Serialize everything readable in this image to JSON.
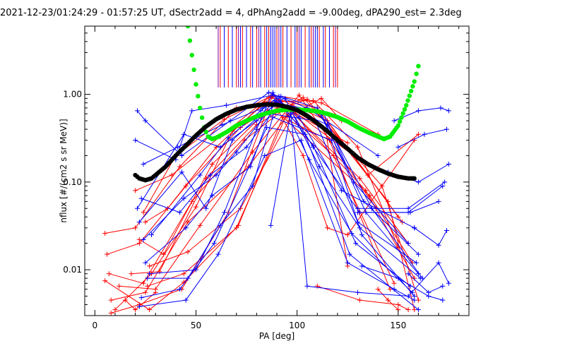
{
  "chart_data": {
    "type": "line",
    "title": "2021-12-23/01:24:29 - 01:57:25 UT, dSectr2add = 4, dPhAng2add = -9.00deg, dPA290_est=   2.3deg",
    "xlabel": "PA [deg]",
    "ylabel": "nflux [#/(cm2 s sr MeV)]",
    "xlim": [
      -5,
      185
    ],
    "ylim": [
      0.003,
      6.0
    ],
    "yscale": "log",
    "x_ticks": [
      0,
      50,
      100,
      150
    ],
    "x_tick_labels": [
      "0",
      "50",
      "100",
      "150"
    ],
    "y_ticks": [
      0.01,
      0.1,
      1.0
    ],
    "y_tick_labels": [
      "0.01",
      "0.10",
      "1.00"
    ],
    "grid": false,
    "colors": {
      "red": "#ff0000",
      "blue": "#0000ff",
      "green": "#00ee00",
      "black": "#000000",
      "purple": "#7a00a8"
    },
    "green_model": {
      "name": "",
      "x": [
        46,
        48,
        50,
        52,
        54,
        56,
        58,
        60,
        65,
        70,
        75,
        80,
        85,
        90,
        95,
        100,
        105,
        110,
        115,
        120,
        125,
        130,
        135,
        140,
        143,
        146,
        150,
        154,
        158,
        160
      ],
      "y": [
        6.0,
        2.8,
        1.3,
        0.7,
        0.42,
        0.33,
        0.31,
        0.32,
        0.37,
        0.44,
        0.5,
        0.56,
        0.61,
        0.65,
        0.67,
        0.67,
        0.66,
        0.64,
        0.6,
        0.55,
        0.49,
        0.42,
        0.37,
        0.33,
        0.31,
        0.33,
        0.44,
        0.75,
        1.4,
        2.1
      ]
    },
    "black_fit": {
      "name": "",
      "x": [
        20,
        22,
        25,
        28,
        30,
        35,
        40,
        45,
        50,
        55,
        60,
        65,
        70,
        75,
        80,
        85,
        90,
        95,
        100,
        105,
        110,
        115,
        120,
        125,
        130,
        135,
        140,
        145,
        150,
        155,
        158
      ],
      "y": [
        0.12,
        0.11,
        0.105,
        0.11,
        0.12,
        0.15,
        0.2,
        0.26,
        0.34,
        0.43,
        0.52,
        0.6,
        0.67,
        0.72,
        0.75,
        0.77,
        0.76,
        0.72,
        0.66,
        0.57,
        0.47,
        0.38,
        0.3,
        0.24,
        0.19,
        0.16,
        0.14,
        0.125,
        0.115,
        0.11,
        0.11
      ]
    },
    "vertical_markers": {
      "y_low": 1.2,
      "y_high": 6.0,
      "red": [
        62,
        66,
        70,
        73,
        77,
        80,
        84,
        86,
        90,
        93,
        97,
        100,
        104,
        107,
        111,
        114,
        118,
        120
      ],
      "blue": [
        64,
        68,
        72,
        75,
        78,
        82,
        85,
        87,
        88,
        89,
        92,
        95,
        99,
        102,
        106,
        109,
        110,
        113,
        116
      ],
      "purple": [
        61,
        71,
        81,
        91,
        101,
        108,
        119
      ]
    },
    "series": [
      {
        "color": "red",
        "x": [
          5,
          20,
          42,
          70,
          90,
          125
        ],
        "y": [
          0.026,
          0.03,
          0.15,
          0.7,
          0.8,
          0.28
        ]
      },
      {
        "color": "red",
        "x": [
          6,
          22,
          45,
          72,
          92,
          128,
          150
        ],
        "y": [
          0.015,
          0.02,
          0.09,
          0.42,
          0.82,
          0.2,
          0.04
        ]
      },
      {
        "color": "red",
        "x": [
          7,
          24,
          48,
          74,
          95,
          131,
          155
        ],
        "y": [
          0.009,
          0.007,
          0.06,
          0.3,
          0.72,
          0.11,
          0.02
        ]
      },
      {
        "color": "red",
        "x": [
          8,
          25,
          46,
          76,
          97,
          134,
          158
        ],
        "y": [
          0.0045,
          0.0055,
          0.035,
          0.15,
          0.65,
          0.08,
          0.008
        ]
      },
      {
        "color": "red",
        "x": [
          10,
          28,
          50,
          68,
          88,
          115,
          152
        ],
        "y": [
          0.0035,
          0.009,
          0.052,
          0.38,
          0.95,
          0.5,
          0.035
        ]
      },
      {
        "color": "red",
        "x": [
          5,
          27,
          44,
          71,
          93,
          136,
          157
        ],
        "y": [
          0.0075,
          0.0035,
          0.0072,
          0.032,
          0.55,
          0.07,
          0.012
        ]
      },
      {
        "color": "red",
        "x": [
          12,
          30,
          52,
          78,
          101,
          139
        ],
        "y": [
          0.0065,
          0.006,
          0.032,
          0.22,
          0.98,
          0.05
        ]
      },
      {
        "color": "red",
        "x": [
          18,
          32,
          55,
          80,
          103,
          142,
          160
        ],
        "y": [
          0.009,
          0.0095,
          0.11,
          0.45,
          0.92,
          0.09,
          0.0045
        ]
      },
      {
        "color": "red",
        "x": [
          22,
          34,
          58,
          82,
          105,
          145,
          158
        ],
        "y": [
          0.022,
          0.015,
          0.16,
          0.55,
          0.88,
          0.06,
          0.0035
        ]
      },
      {
        "color": "red",
        "x": [
          25,
          36,
          60,
          84,
          108,
          130,
          150
        ],
        "y": [
          0.035,
          0.05,
          0.25,
          0.82,
          0.85,
          0.25,
          0.018
        ]
      },
      {
        "color": "red",
        "x": [
          8,
          22,
          43,
          66,
          88,
          112,
          140
        ],
        "y": [
          0.0032,
          0.004,
          0.006,
          0.045,
          0.98,
          0.8,
          0.35
        ]
      },
      {
        "color": "red",
        "x": [
          20,
          38,
          62,
          86,
          110,
          135,
          160
        ],
        "y": [
          0.08,
          0.12,
          0.33,
          0.92,
          0.7,
          0.12,
          0.35
        ]
      },
      {
        "color": "red",
        "x": [
          24,
          40,
          64,
          87,
          114,
          125
        ],
        "y": [
          0.045,
          0.2,
          0.52,
          0.95,
          0.4,
          0.011
        ]
      },
      {
        "color": "red",
        "x": [
          26,
          44,
          70,
          95,
          118,
          148
        ],
        "y": [
          0.0065,
          0.009,
          0.03,
          0.6,
          0.2,
          0.007
        ]
      },
      {
        "color": "red",
        "x": [
          27,
          46,
          72,
          96,
          116,
          146
        ],
        "y": [
          0.011,
          0.016,
          0.05,
          0.5,
          0.3,
          0.006
        ]
      },
      {
        "color": "red",
        "x": [
          110,
          131,
          150,
          155
        ],
        "y": [
          0.0065,
          0.0045,
          0.004,
          0.0035
        ]
      },
      {
        "color": "red",
        "x": [
          95,
          112,
          122,
          138
        ],
        "y": [
          0.55,
          0.9,
          0.5,
          0.35
        ]
      },
      {
        "color": "red",
        "x": [
          90,
          103,
          115,
          125,
          158
        ],
        "y": [
          0.7,
          0.2,
          0.03,
          0.025,
          0.3
        ]
      },
      {
        "color": "red",
        "x": [
          15,
          20,
          30
        ],
        "y": [
          0.0045,
          0.0035,
          0.0055
        ]
      },
      {
        "color": "red",
        "x": [
          140,
          145,
          150
        ],
        "y": [
          0.006,
          0.0045,
          0.0035
        ]
      },
      {
        "color": "blue",
        "x": [
          21,
          25,
          43,
          67,
          86,
          105,
          140
        ],
        "y": [
          0.65,
          0.5,
          0.2,
          0.5,
          1.05,
          0.7,
          0.2
        ]
      },
      {
        "color": "blue",
        "x": [
          20,
          40,
          48,
          65,
          88,
          101,
          122,
          158
        ],
        "y": [
          0.3,
          0.18,
          0.65,
          0.75,
          0.98,
          0.55,
          0.08,
          0.03
        ]
      },
      {
        "color": "blue",
        "x": [
          21,
          44,
          62,
          80,
          90,
          113,
          128,
          155
        ],
        "y": [
          0.05,
          0.35,
          0.25,
          0.5,
          0.8,
          0.62,
          0.1,
          0.02
        ]
      },
      {
        "color": "blue",
        "x": [
          22,
          43,
          55,
          68,
          92,
          110,
          133,
          160
        ],
        "y": [
          0.035,
          0.13,
          0.05,
          0.3,
          0.95,
          0.7,
          0.06,
          0.015
        ]
      },
      {
        "color": "blue",
        "x": [
          23,
          42,
          57,
          75,
          87,
          109,
          130,
          159
        ],
        "y": [
          0.065,
          0.045,
          0.12,
          0.25,
          0.6,
          0.5,
          0.035,
          0.012
        ]
      },
      {
        "color": "blue",
        "x": [
          24,
          44,
          60,
          70,
          88,
          112,
          134,
          160
        ],
        "y": [
          0.022,
          0.065,
          0.12,
          0.22,
          0.75,
          0.6,
          0.045,
          0.009
        ]
      },
      {
        "color": "blue",
        "x": [
          25,
          45,
          58,
          77,
          89,
          115,
          137,
          162
        ],
        "y": [
          0.012,
          0.03,
          0.07,
          0.15,
          0.85,
          0.45,
          0.05,
          0.008
        ]
      },
      {
        "color": "blue",
        "x": [
          26,
          46,
          62,
          78,
          88,
          117,
          132,
          158
        ],
        "y": [
          0.008,
          0.008,
          0.032,
          0.09,
          0.55,
          0.3,
          0.025,
          0.005
        ]
      },
      {
        "color": "blue",
        "x": [
          23,
          42,
          59,
          85,
          104,
          126,
          160
        ],
        "y": [
          0.0048,
          0.006,
          0.02,
          0.42,
          0.35,
          0.015,
          0.0035
        ]
      },
      {
        "color": "blue",
        "x": [
          22,
          45,
          61,
          84,
          102,
          125,
          148,
          158
        ],
        "y": [
          0.0038,
          0.0045,
          0.015,
          0.2,
          0.3,
          0.012,
          0.006,
          0.0045
        ]
      },
      {
        "color": "blue",
        "x": [
          27,
          50,
          64,
          80,
          88,
          108,
          129,
          156
        ],
        "y": [
          0.009,
          0.01,
          0.045,
          0.4,
          1.05,
          0.26,
          0.02,
          0.0065
        ]
      },
      {
        "color": "blue",
        "x": [
          28,
          52,
          66,
          82,
          91,
          106,
          127,
          157
        ],
        "y": [
          0.025,
          0.12,
          0.32,
          0.65,
          0.95,
          0.18,
          0.026,
          0.0055
        ]
      },
      {
        "color": "blue",
        "x": [
          24,
          41,
          63,
          83,
          94,
          111,
          131,
          161
        ],
        "y": [
          0.16,
          0.25,
          0.45,
          0.7,
          0.9,
          0.15,
          0.03,
          0.008
        ]
      },
      {
        "color": "blue",
        "x": [
          87,
          97,
          108,
          131,
          156,
          170
        ],
        "y": [
          0.032,
          0.65,
          0.25,
          0.045,
          0.045,
          0.06
        ]
      },
      {
        "color": "blue",
        "x": [
          97,
          105,
          130,
          155,
          170,
          175
        ],
        "y": [
          0.6,
          0.0065,
          0.0055,
          0.005,
          0.012,
          0.007
        ]
      },
      {
        "color": "blue",
        "x": [
          130,
          155,
          172
        ],
        "y": [
          0.045,
          0.045,
          0.09
        ]
      },
      {
        "color": "blue",
        "x": [
          130,
          155,
          173
        ],
        "y": [
          0.05,
          0.05,
          0.1
        ]
      },
      {
        "color": "blue",
        "x": [
          145,
          160,
          175
        ],
        "y": [
          0.13,
          0.1,
          0.16
        ]
      },
      {
        "color": "blue",
        "x": [
          150,
          163,
          174
        ],
        "y": [
          0.25,
          0.35,
          0.4
        ]
      },
      {
        "color": "blue",
        "x": [
          148,
          160,
          171,
          175
        ],
        "y": [
          0.5,
          0.65,
          0.7,
          0.65
        ]
      },
      {
        "color": "blue",
        "x": [
          155,
          165,
          172
        ],
        "y": [
          0.009,
          0.0055,
          0.0065
        ]
      },
      {
        "color": "blue",
        "x": [
          132,
          150,
          165,
          172
        ],
        "y": [
          0.011,
          0.008,
          0.005,
          0.0045
        ]
      },
      {
        "color": "blue",
        "x": [
          158,
          170,
          174
        ],
        "y": [
          0.03,
          0.019,
          0.028
        ]
      }
    ]
  }
}
